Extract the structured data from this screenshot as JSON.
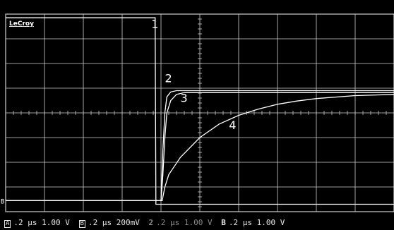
{
  "brand": "LeCroy",
  "colors": {
    "background": "#000000",
    "grid": "#cfcfcf",
    "trace": "#ffffff",
    "dim_text": "#8a8a8a"
  },
  "chart_data": {
    "type": "line",
    "title": "",
    "xlabel": "",
    "ylabel": "",
    "grid": true,
    "grid_divisions": {
      "x": 10,
      "y": 8
    },
    "xlim": [
      0,
      10
    ],
    "ylim": [
      -4,
      4
    ],
    "x_unit": "div",
    "y_unit": "div",
    "series": [
      {
        "name": "1",
        "label_pos": {
          "x": 3.75,
          "y": 3.45
        },
        "points": [
          [
            0,
            3.85
          ],
          [
            3.85,
            3.85
          ],
          [
            3.85,
            3.3
          ],
          [
            3.87,
            -3.7
          ],
          [
            10,
            -3.7
          ]
        ]
      },
      {
        "name": "2",
        "label_pos": {
          "x": 4.1,
          "y": 1.25
        },
        "points": [
          [
            0,
            -3.55
          ],
          [
            4.0,
            -3.55
          ],
          [
            4.05,
            -1.5
          ],
          [
            4.1,
            0.0
          ],
          [
            4.15,
            0.65
          ],
          [
            4.25,
            0.85
          ],
          [
            4.4,
            0.9
          ],
          [
            10,
            0.9
          ]
        ]
      },
      {
        "name": "3",
        "label_pos": {
          "x": 4.5,
          "y": 0.45
        },
        "points": [
          [
            0,
            -3.55
          ],
          [
            4.0,
            -3.55
          ],
          [
            4.05,
            -2.5
          ],
          [
            4.1,
            -1.0
          ],
          [
            4.15,
            0.0
          ],
          [
            4.25,
            0.5
          ],
          [
            4.4,
            0.75
          ],
          [
            4.6,
            0.82
          ],
          [
            10,
            0.82
          ]
        ]
      },
      {
        "name": "4",
        "label_pos": {
          "x": 5.75,
          "y": -0.65
        },
        "points": [
          [
            0,
            -3.55
          ],
          [
            4.03,
            -3.55
          ],
          [
            4.1,
            -3.0
          ],
          [
            4.2,
            -2.5
          ],
          [
            4.5,
            -1.8
          ],
          [
            5.0,
            -1.0
          ],
          [
            5.5,
            -0.45
          ],
          [
            6.0,
            -0.1
          ],
          [
            6.5,
            0.15
          ],
          [
            7.0,
            0.35
          ],
          [
            7.5,
            0.48
          ],
          [
            8.0,
            0.58
          ],
          [
            9.0,
            0.7
          ],
          [
            10,
            0.75
          ]
        ]
      }
    ]
  },
  "readout": [
    {
      "tag": "A",
      "timebase": ".2 µs",
      "volts": "1.00 V",
      "dim": false
    },
    {
      "tag": "B",
      "timebase": ".2 µs",
      "volts": "200mV",
      "dim": false
    },
    {
      "tag": "2",
      "timebase": ".2 µs",
      "volts": "1.00 V",
      "dim": true
    },
    {
      "tag": "B",
      "timebase": ".2 µs",
      "volts": "1.00 V",
      "dim": false
    }
  ]
}
